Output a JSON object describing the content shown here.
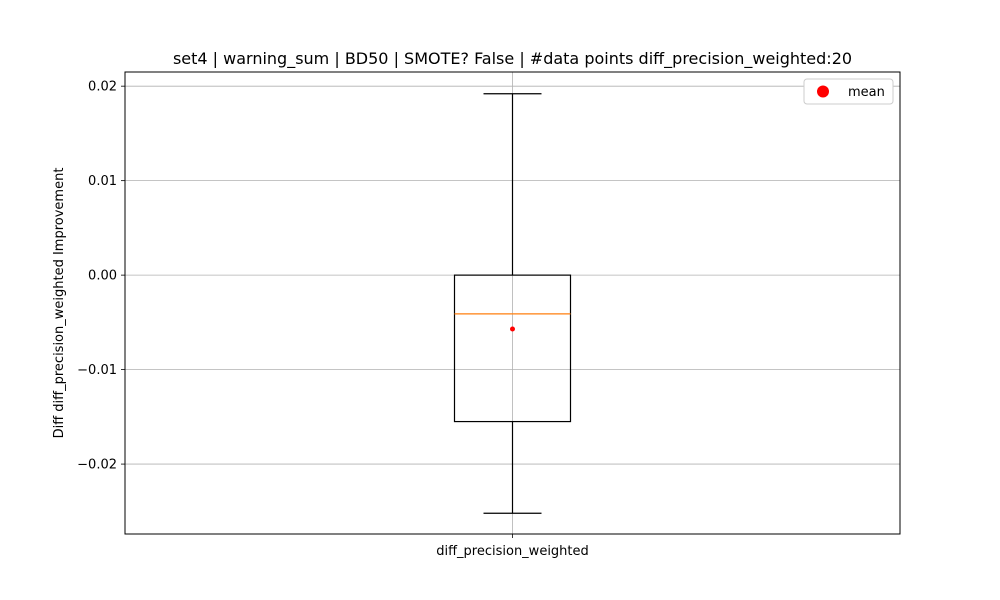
{
  "chart_data": {
    "type": "box",
    "title": "set4 | warning_sum | BD50 | SMOTE? False | #data points diff_precision_weighted:20",
    "xlabel": "",
    "ylabel": "Diff diff_precision_weighted Improvement",
    "categories": [
      "diff_precision_weighted"
    ],
    "ylim": [
      -0.0274,
      0.0215
    ],
    "yticks": [
      -0.02,
      -0.01,
      0.0,
      0.01,
      0.02
    ],
    "ytick_labels": [
      "−0.02",
      "−0.01",
      "0.00",
      "0.01",
      "0.02"
    ],
    "grid": true,
    "legend": {
      "position": "top-right",
      "entries": [
        {
          "label": "mean",
          "color": "#ff0000"
        }
      ]
    },
    "series": [
      {
        "name": "diff_precision_weighted",
        "whisker_low": -0.0252,
        "q1": -0.0155,
        "median": -0.0041,
        "q3": 0.0,
        "whisker_high": 0.0192,
        "mean": -0.0057
      }
    ],
    "colors": {
      "box": "#000000",
      "median": "#ff7f0e",
      "mean": "#ff0000",
      "grid": "#b0b0b0"
    }
  }
}
